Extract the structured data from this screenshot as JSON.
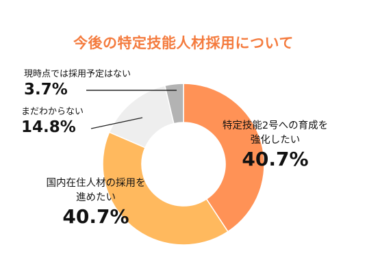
{
  "title": "今後の特定技能人材採用について",
  "chart_data": {
    "type": "pie",
    "title": "今後の特定技能人材採用について",
    "slices": [
      {
        "label_lines": [
          "特定技能2号への育成を",
          "強化したい"
        ],
        "value": 40.7,
        "value_label": "40.7%",
        "color": "#FF9256"
      },
      {
        "label_lines": [
          "国内在住人材の採用を",
          "進めたい"
        ],
        "value": 40.7,
        "value_label": "40.7%",
        "color": "#FFB95E"
      },
      {
        "label_lines": [
          "まだわからない"
        ],
        "value": 14.8,
        "value_label": "14.8%",
        "color": "#EEEEEE"
      },
      {
        "label_lines": [
          "現時点では採用予定はない"
        ],
        "value": 3.7,
        "value_label": "3.7%",
        "color": "#B3B3B3"
      }
    ]
  }
}
